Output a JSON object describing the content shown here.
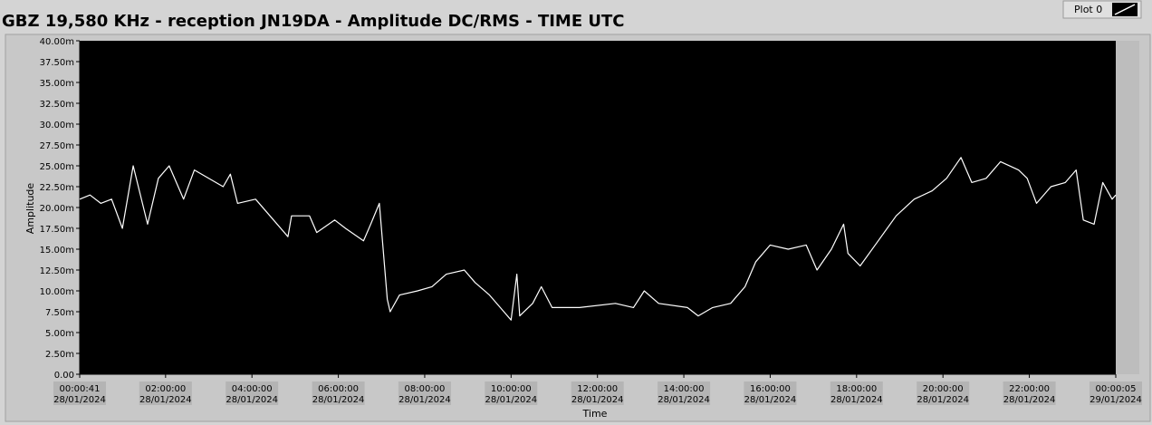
{
  "chart_data": {
    "type": "line",
    "title": "GBZ  19,580 KHz - reception JN19DA -  Amplitude DC/RMS   - TIME UTC",
    "x_label": "Time",
    "y_label": "Amplitude",
    "xlim": [
      "2024-01-28T00:00:41Z",
      "2024-01-29T00:00:05Z"
    ],
    "ylim": [
      0,
      40
    ],
    "yticks": [
      {
        "value": 0,
        "label": "0.00"
      },
      {
        "value": 2.5,
        "label": "2.50m"
      },
      {
        "value": 5,
        "label": "5.00m"
      },
      {
        "value": 7.5,
        "label": "7.50m"
      },
      {
        "value": 10,
        "label": "10.00m"
      },
      {
        "value": 12.5,
        "label": "12.50m"
      },
      {
        "value": 15,
        "label": "15.00m"
      },
      {
        "value": 17.5,
        "label": "17.50m"
      },
      {
        "value": 20,
        "label": "20.00m"
      },
      {
        "value": 22.5,
        "label": "22.50m"
      },
      {
        "value": 25,
        "label": "25.00m"
      },
      {
        "value": 27.5,
        "label": "27.50m"
      },
      {
        "value": 30,
        "label": "30.00m"
      },
      {
        "value": 32.5,
        "label": "32.50m"
      },
      {
        "value": 35,
        "label": "35.00m"
      },
      {
        "value": 37.5,
        "label": "37.50m"
      },
      {
        "value": 40,
        "label": "40.00m"
      }
    ],
    "xticks": [
      {
        "value": "2024-01-28T00:00:41Z",
        "label": [
          "00:00:41",
          "28/01/2024"
        ]
      },
      {
        "value": "2024-01-28T02:00:00Z",
        "label": [
          "02:00:00",
          "28/01/2024"
        ]
      },
      {
        "value": "2024-01-28T04:00:00Z",
        "label": [
          "04:00:00",
          "28/01/2024"
        ]
      },
      {
        "value": "2024-01-28T06:00:00Z",
        "label": [
          "06:00:00",
          "28/01/2024"
        ]
      },
      {
        "value": "2024-01-28T08:00:00Z",
        "label": [
          "08:00:00",
          "28/01/2024"
        ]
      },
      {
        "value": "2024-01-28T10:00:00Z",
        "label": [
          "10:00:00",
          "28/01/2024"
        ]
      },
      {
        "value": "2024-01-28T12:00:00Z",
        "label": [
          "12:00:00",
          "28/01/2024"
        ]
      },
      {
        "value": "2024-01-28T14:00:00Z",
        "label": [
          "14:00:00",
          "28/01/2024"
        ]
      },
      {
        "value": "2024-01-28T16:00:00Z",
        "label": [
          "16:00:00",
          "28/01/2024"
        ]
      },
      {
        "value": "2024-01-28T18:00:00Z",
        "label": [
          "18:00:00",
          "28/01/2024"
        ]
      },
      {
        "value": "2024-01-28T20:00:00Z",
        "label": [
          "20:00:00",
          "28/01/2024"
        ]
      },
      {
        "value": "2024-01-28T22:00:00Z",
        "label": [
          "22:00:00",
          "28/01/2024"
        ]
      },
      {
        "value": "2024-01-29T00:00:05Z",
        "label": [
          "00:00:05",
          "29/01/2024"
        ]
      }
    ],
    "x": [
      "2024-01-28T00:00:41Z",
      "2024-01-28T00:15:00Z",
      "2024-01-28T00:30:00Z",
      "2024-01-28T00:45:00Z",
      "2024-01-28T01:00:00Z",
      "2024-01-28T01:15:00Z",
      "2024-01-28T01:35:00Z",
      "2024-01-28T01:50:00Z",
      "2024-01-28T02:05:00Z",
      "2024-01-28T02:25:00Z",
      "2024-01-28T02:40:00Z",
      "2024-01-28T03:20:00Z",
      "2024-01-28T03:30:00Z",
      "2024-01-28T03:40:00Z",
      "2024-01-28T04:05:00Z",
      "2024-01-28T04:25:00Z",
      "2024-01-28T04:50:00Z",
      "2024-01-28T04:55:00Z",
      "2024-01-28T05:20:00Z",
      "2024-01-28T05:30:00Z",
      "2024-01-28T05:55:00Z",
      "2024-01-28T06:10:00Z",
      "2024-01-28T06:35:00Z",
      "2024-01-28T06:45:00Z",
      "2024-01-28T06:57:00Z",
      "2024-01-28T07:08:00Z",
      "2024-01-28T07:12:00Z",
      "2024-01-28T07:25:00Z",
      "2024-01-28T07:50:00Z",
      "2024-01-28T08:10:00Z",
      "2024-01-28T08:30:00Z",
      "2024-01-28T08:55:00Z",
      "2024-01-28T09:10:00Z",
      "2024-01-28T09:30:00Z",
      "2024-01-28T09:50:00Z",
      "2024-01-28T10:00:00Z",
      "2024-01-28T10:08:00Z",
      "2024-01-28T10:12:00Z",
      "2024-01-28T10:30:00Z",
      "2024-01-28T10:42:00Z",
      "2024-01-28T10:57:00Z",
      "2024-01-28T11:35:00Z",
      "2024-01-28T12:25:00Z",
      "2024-01-28T12:50:00Z",
      "2024-01-28T13:05:00Z",
      "2024-01-28T13:25:00Z",
      "2024-01-28T14:05:00Z",
      "2024-01-28T14:20:00Z",
      "2024-01-28T14:40:00Z",
      "2024-01-28T15:05:00Z",
      "2024-01-28T15:25:00Z",
      "2024-01-28T15:40:00Z",
      "2024-01-28T16:00:00Z",
      "2024-01-28T16:25:00Z",
      "2024-01-28T16:50:00Z",
      "2024-01-28T17:05:00Z",
      "2024-01-28T17:25:00Z",
      "2024-01-28T17:42:00Z",
      "2024-01-28T17:48:00Z",
      "2024-01-28T18:05:00Z",
      "2024-01-28T18:30:00Z",
      "2024-01-28T18:55:00Z",
      "2024-01-28T19:20:00Z",
      "2024-01-28T19:45:00Z",
      "2024-01-28T20:05:00Z",
      "2024-01-28T20:25:00Z",
      "2024-01-28T20:40:00Z",
      "2024-01-28T21:00:00Z",
      "2024-01-28T21:20:00Z",
      "2024-01-28T21:45:00Z",
      "2024-01-28T21:57:00Z",
      "2024-01-28T22:10:00Z",
      "2024-01-28T22:30:00Z",
      "2024-01-28T22:50:00Z",
      "2024-01-28T23:05:00Z",
      "2024-01-28T23:15:00Z",
      "2024-01-28T23:30:00Z",
      "2024-01-28T23:42:00Z",
      "2024-01-28T23:55:00Z",
      "2024-01-29T00:00:05Z"
    ],
    "series": [
      {
        "name": "Plot 0",
        "color": "#ffffff",
        "values": [
          21,
          21.5,
          20.5,
          21,
          17.5,
          25,
          18,
          23.5,
          25,
          21,
          24.5,
          22.5,
          24,
          20.5,
          21,
          19,
          16.5,
          19,
          19,
          17,
          18.5,
          17.5,
          16,
          18,
          20.5,
          9,
          7.5,
          9.5,
          10,
          10.5,
          12,
          12.5,
          11,
          9.5,
          7.5,
          6.5,
          12,
          7,
          8.5,
          10.5,
          8,
          8,
          8.5,
          8,
          10,
          8.5,
          8,
          7,
          8,
          8.5,
          10.5,
          13.5,
          15.5,
          15,
          15.5,
          12.5,
          15,
          18,
          14.5,
          13,
          16,
          19,
          21,
          22,
          23.5,
          26,
          23,
          23.5,
          25.5,
          24.5,
          23.5,
          20.5,
          22.5,
          23,
          24.5,
          18.5,
          18,
          23,
          21,
          21.5
        ]
      }
    ]
  }
}
